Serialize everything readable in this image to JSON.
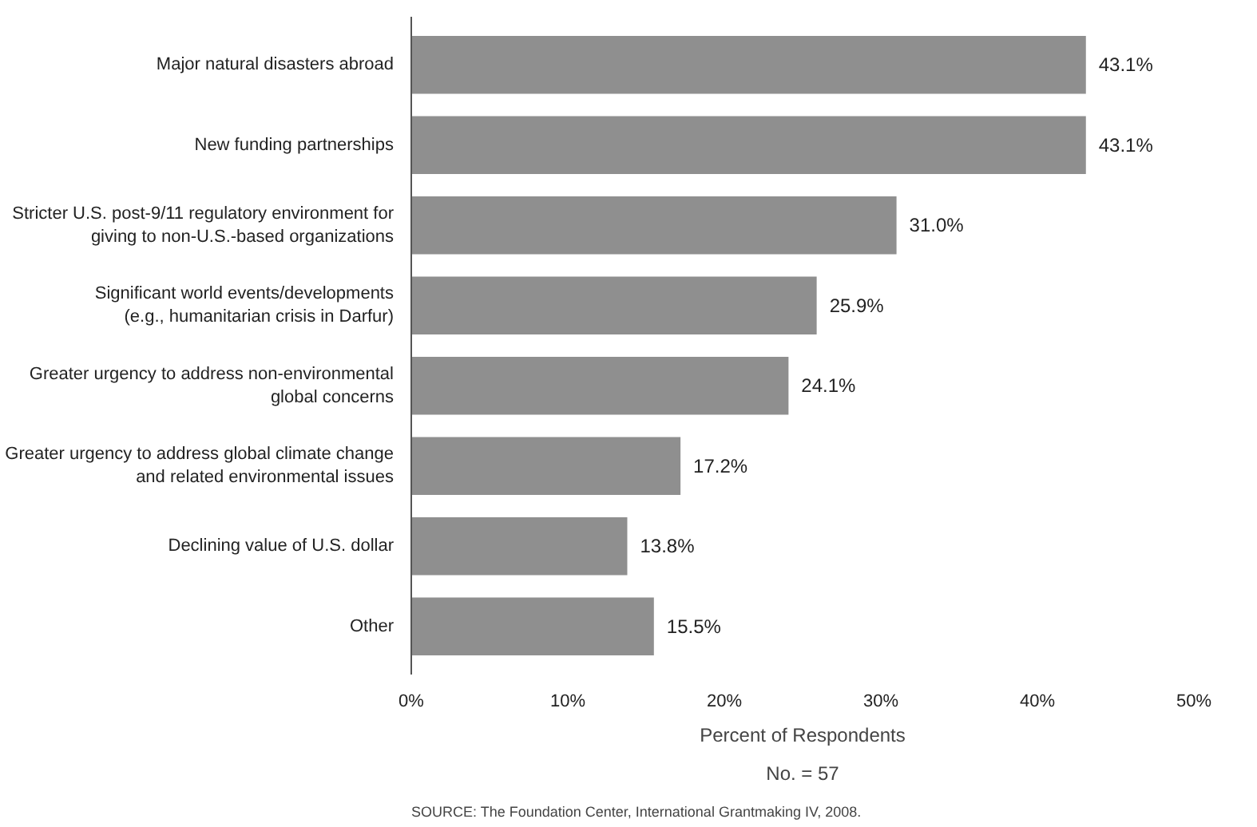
{
  "chart_data": {
    "type": "bar",
    "orientation": "horizontal",
    "categories": [
      "Major natural disasters abroad",
      "New funding partnerships",
      "Stricter U.S. post-9/11 regulatory environment for\ngiving to non-U.S.-based organizations",
      "Significant world events/developments\n(e.g., humanitarian crisis in Darfur)",
      "Greater urgency to address non-environmental\nglobal concerns",
      "Greater urgency to address global climate change\nand related environmental issues",
      "Declining value of U.S. dollar",
      "Other"
    ],
    "values": [
      43.1,
      43.1,
      31.0,
      25.9,
      24.1,
      17.2,
      13.8,
      15.5
    ],
    "value_labels": [
      "43.1%",
      "43.1%",
      "31.0%",
      "25.9%",
      "24.1%",
      "17.2%",
      "13.8%",
      "15.5%"
    ],
    "color": "#8f8f8f",
    "xlim": [
      0,
      50
    ],
    "xticks": [
      {
        "value": 0,
        "label": "0%"
      },
      {
        "value": 10,
        "label": "10%"
      },
      {
        "value": 20,
        "label": "20%"
      },
      {
        "value": 30,
        "label": "30%"
      },
      {
        "value": 40,
        "label": "40%"
      },
      {
        "value": 50,
        "label": "50%"
      }
    ],
    "xlabel": "Percent of Respondents",
    "annotations": [
      "No. = 57",
      "SOURCE: The Foundation Center, International Grantmaking IV, 2008."
    ],
    "grid": false
  }
}
